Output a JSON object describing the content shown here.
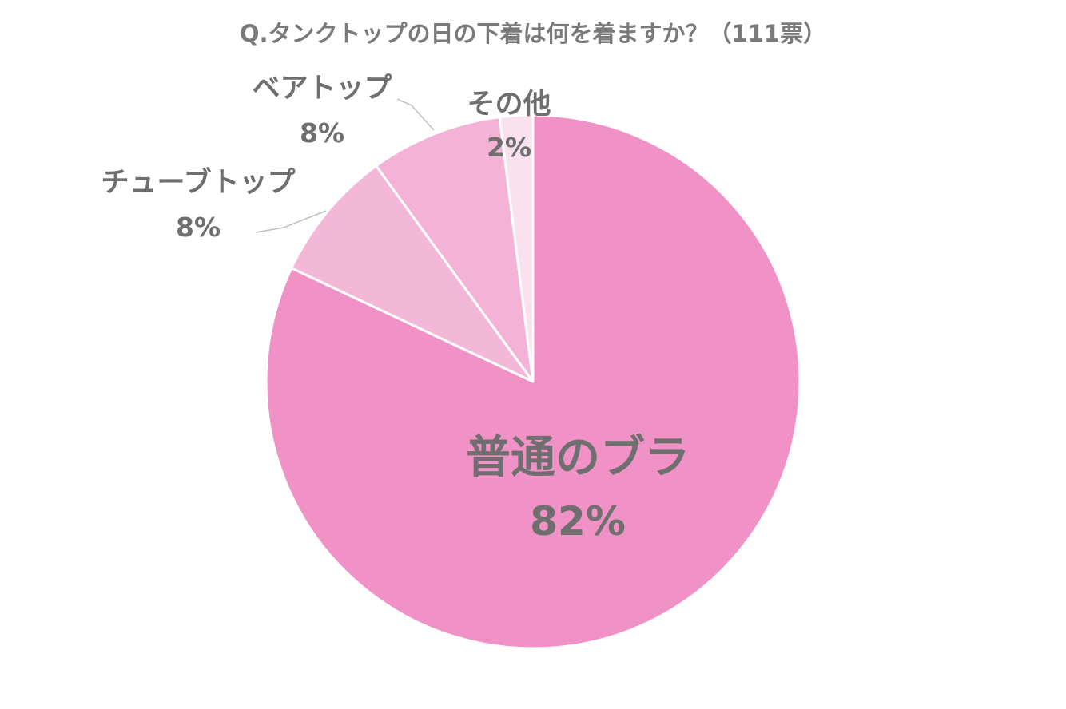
{
  "chart_data": {
    "type": "pie",
    "title": "Q.タンクトップの日の下着は何を着ますか？（111票）",
    "categories": [
      "普通のブラ",
      "チューブトップ",
      "ベアトップ",
      "その他"
    ],
    "values": [
      82,
      8,
      8,
      2
    ],
    "value_labels": [
      "82%",
      "8%",
      "8%",
      "2%"
    ],
    "unit": "%",
    "colors": [
      "#f092c5",
      "#f3b8d8",
      "#f4b3d6",
      "#fae1ee"
    ],
    "start_angle": "12 o'clock",
    "direction": "clockwise",
    "legend": "none",
    "label_placement": [
      "inside",
      "outside-left",
      "outside-top-left",
      "outside-top"
    ]
  }
}
